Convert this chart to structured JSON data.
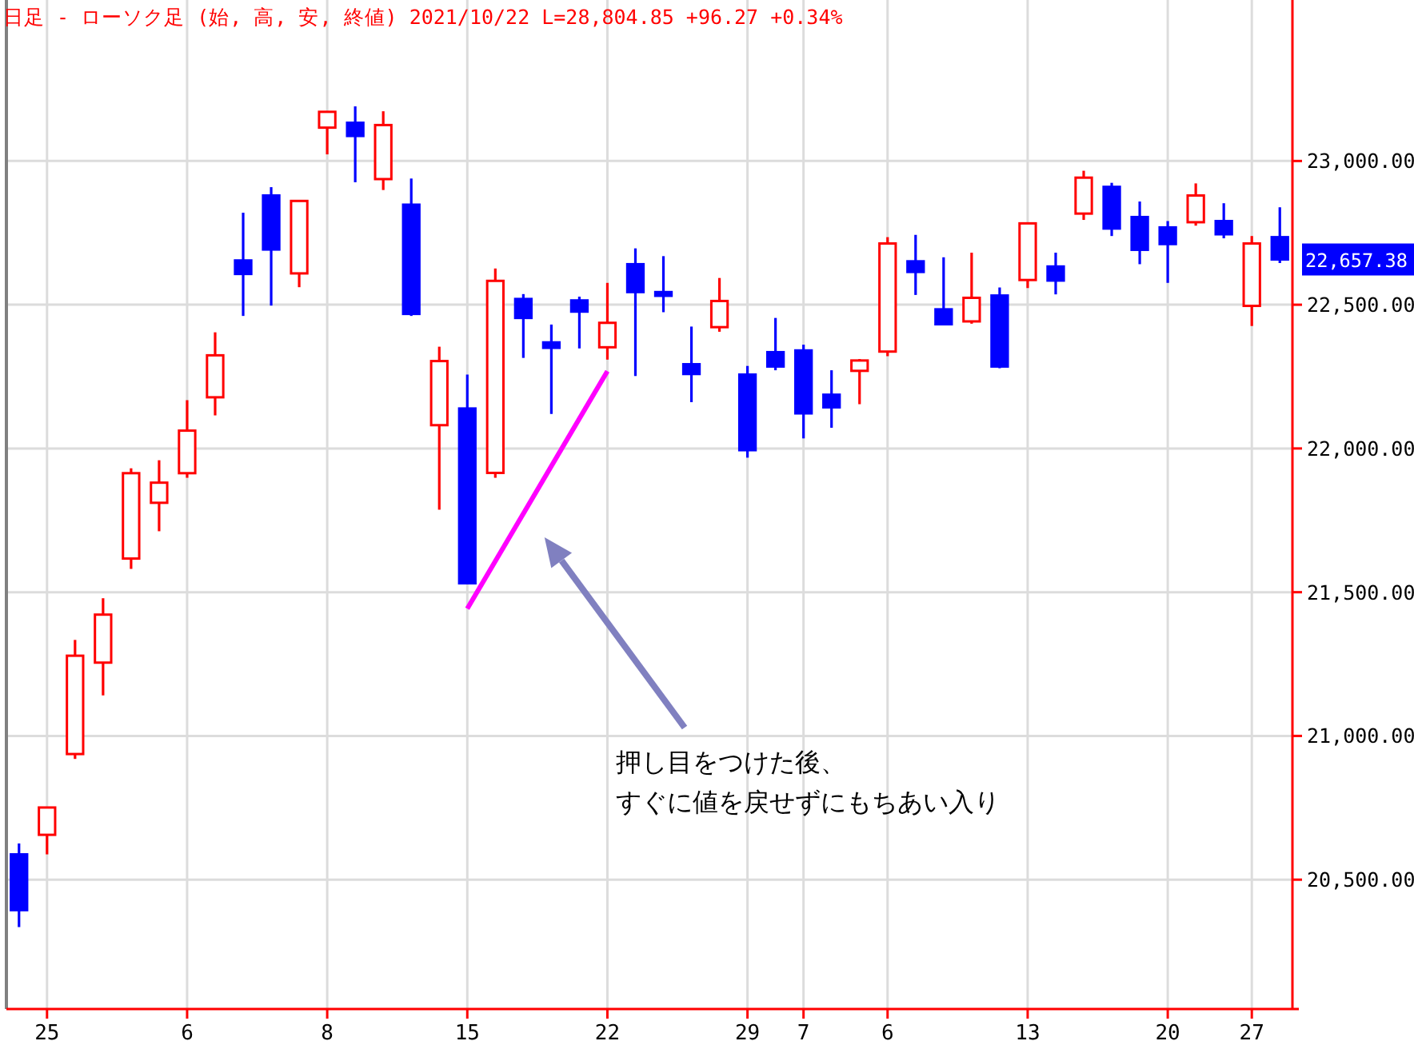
{
  "chart_data": {
    "type": "candlestick",
    "title": "日足 - ローソク足 (始, 高, 安, 終値)  2021/10/22 L=28,804.85 +96.27 +0.34%",
    "categories": [
      null,
      "25",
      null,
      null,
      null,
      null,
      "6",
      null,
      null,
      null,
      null,
      "8",
      null,
      null,
      null,
      null,
      "15",
      null,
      null,
      null,
      null,
      "22",
      null,
      null,
      null,
      null,
      "29",
      null,
      "7",
      null,
      null,
      "6",
      null,
      null,
      null,
      null,
      "13",
      null,
      null,
      null,
      null,
      "20",
      null,
      null,
      "27",
      null
    ],
    "ohlc": [
      [
        20588,
        20626,
        20335,
        20394
      ],
      [
        20656,
        20751,
        20588,
        20751
      ],
      [
        20937,
        21334,
        20920,
        21279
      ],
      [
        21255,
        21479,
        21141,
        21422
      ],
      [
        21617,
        21931,
        21581,
        21914
      ],
      [
        21811,
        21959,
        21712,
        21881
      ],
      [
        21914,
        22168,
        21898,
        22062
      ],
      [
        22178,
        22404,
        22115,
        22324
      ],
      [
        22654,
        22820,
        22461,
        22607
      ],
      [
        22880,
        22909,
        22497,
        22692
      ],
      [
        22609,
        22863,
        22561,
        22861
      ],
      [
        23116,
        23171,
        23023,
        23171
      ],
      [
        23133,
        23190,
        22926,
        23087
      ],
      [
        22937,
        23173,
        22899,
        23125
      ],
      [
        22848,
        22939,
        22461,
        22468
      ],
      [
        22081,
        22354,
        21787,
        22304
      ],
      [
        22139,
        22257,
        21531,
        21531
      ],
      [
        21915,
        22626,
        21898,
        22583
      ],
      [
        22520,
        22537,
        22315,
        22454
      ],
      [
        22369,
        22431,
        22120,
        22350
      ],
      [
        22515,
        22528,
        22348,
        22476
      ],
      [
        22352,
        22576,
        22309,
        22437
      ],
      [
        22641,
        22696,
        22252,
        22544
      ],
      [
        22544,
        22669,
        22474,
        22531
      ],
      [
        22293,
        22424,
        22161,
        22259
      ],
      [
        22422,
        22593,
        22406,
        22513
      ],
      [
        22257,
        22287,
        21968,
        21994
      ],
      [
        22335,
        22454,
        22272,
        22285
      ],
      [
        22341,
        22361,
        22035,
        22122
      ],
      [
        22187,
        22272,
        22072,
        22143
      ],
      [
        22270,
        22311,
        22154,
        22306
      ],
      [
        22337,
        22735,
        22321,
        22713
      ],
      [
        22651,
        22743,
        22534,
        22614
      ],
      [
        22484,
        22665,
        22432,
        22432
      ],
      [
        22442,
        22681,
        22434,
        22524
      ],
      [
        22532,
        22560,
        22279,
        22285
      ],
      [
        22586,
        22783,
        22558,
        22783
      ],
      [
        22633,
        22681,
        22536,
        22584
      ],
      [
        22817,
        22966,
        22795,
        22942
      ],
      [
        22910,
        22924,
        22739,
        22765
      ],
      [
        22805,
        22859,
        22641,
        22691
      ],
      [
        22769,
        22791,
        22576,
        22711
      ],
      [
        22787,
        22922,
        22775,
        22880
      ],
      [
        22791,
        22853,
        22731,
        22745
      ],
      [
        22496,
        22739,
        22426,
        22713
      ],
      [
        22735,
        22839,
        22645,
        22657.38
      ]
    ],
    "colors": [
      "#0000ff",
      "#ff0000",
      "#ff0000",
      "#ff0000",
      "#ff0000",
      "#ff0000",
      "#ff0000",
      "#ff0000",
      "#0000ff",
      "#0000ff",
      "#ff0000",
      "#ff0000",
      "#0000ff",
      "#ff0000",
      "#0000ff",
      "#ff0000",
      "#0000ff",
      "#ff0000",
      "#0000ff",
      "#0000ff",
      "#0000ff",
      "#ff0000",
      "#0000ff",
      "#0000ff",
      "#0000ff",
      "#ff0000",
      "#0000ff",
      "#0000ff",
      "#0000ff",
      "#0000ff",
      "#ff0000",
      "#ff0000",
      "#0000ff",
      "#0000ff",
      "#ff0000",
      "#0000ff",
      "#ff0000",
      "#0000ff",
      "#ff0000",
      "#0000ff",
      "#0000ff",
      "#0000ff",
      "#ff0000",
      "#0000ff",
      "#ff0000",
      "#0000ff"
    ],
    "series": [
      {
        "type": "line",
        "x": [
          "15",
          "22"
        ],
        "values": [
          21443,
          22269
        ],
        "color": "#ff00ff"
      }
    ],
    "ylim": [
      20050,
      23560
    ],
    "yticks": [
      {
        "value": 20500,
        "label": "20,500.00"
      },
      {
        "value": 21000,
        "label": "21,000.00"
      },
      {
        "value": 21500,
        "label": "21,500.00"
      },
      {
        "value": 22000,
        "label": "22,000.00"
      },
      {
        "value": 22500,
        "label": "22,500.00"
      },
      {
        "value": 23000,
        "label": "23,000.00"
      }
    ],
    "annotations": [
      "押し目をつけた後、",
      "すぐに値を戻せずにもちあい入り",
      "22,657.38"
    ],
    "grid": true
  }
}
